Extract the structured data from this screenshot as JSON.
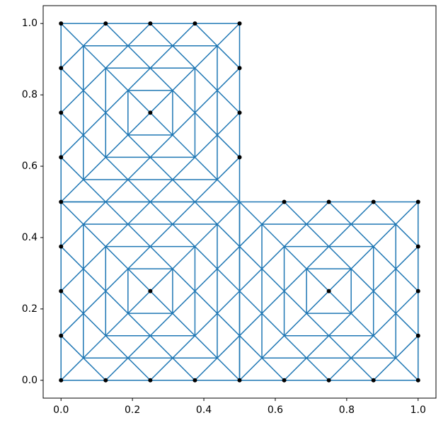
{
  "chart_data": {
    "type": "mesh",
    "xlim": [
      -0.05,
      1.05
    ],
    "ylim": [
      -0.05,
      1.05
    ],
    "xticks": [
      {
        "value": 0,
        "label": "0.0"
      },
      0.2,
      0.4,
      0.6,
      0.8,
      {
        "value": 1,
        "label": "1.0"
      }
    ],
    "yticks": [
      {
        "value": 0,
        "label": "0.0"
      },
      0.2,
      0.4,
      0.6,
      0.8,
      {
        "value": 1,
        "label": "1.0"
      }
    ],
    "grid": false,
    "series": [
      {
        "color": "#1f77b4",
        "x": [
          0,
          0.5,
          0.5,
          0,
          0,
          null,
          0.0625,
          0.4375,
          0.4375,
          0.0625,
          0.0625,
          null,
          0.125,
          0.375,
          0.375,
          0.125,
          0.125,
          null,
          0.1875,
          0.3125,
          0.3125,
          0.1875,
          0.1875,
          null,
          0,
          0.125,
          null,
          0,
          0.25,
          null,
          0,
          0.375,
          null,
          0,
          0.5,
          null,
          0.125,
          0.5,
          null,
          0.25,
          0.5,
          null,
          0.375,
          0.5,
          null,
          0,
          0.125,
          null,
          0,
          0.25,
          null,
          0,
          0.375,
          null,
          0,
          0.5,
          null,
          0.125,
          0.5,
          null,
          0.25,
          0.5,
          null,
          0.375,
          0.5
        ],
        "y": [
          0.5,
          0.5,
          1,
          1,
          0.5,
          null,
          0.5625,
          0.5625,
          0.9375,
          0.9375,
          0.5625,
          null,
          0.625,
          0.625,
          0.875,
          0.875,
          0.625,
          null,
          0.6875,
          0.6875,
          0.8125,
          0.8125,
          0.6875,
          null,
          0.625,
          0.5,
          null,
          0.75,
          0.5,
          null,
          0.875,
          0.5,
          null,
          1,
          0.5,
          null,
          1,
          0.625,
          null,
          1,
          0.75,
          null,
          1,
          0.875,
          null,
          0.875,
          1,
          null,
          0.75,
          1,
          null,
          0.625,
          1,
          null,
          0.5,
          1,
          null,
          0.5,
          0.875,
          null,
          0.5,
          0.75,
          null,
          0.5,
          0.625
        ]
      },
      {
        "color": "#1f77b4",
        "x": [
          0,
          0.5,
          0.5,
          0,
          0,
          null,
          0.0625,
          0.4375,
          0.4375,
          0.0625,
          0.0625,
          null,
          0.125,
          0.375,
          0.375,
          0.125,
          0.125,
          null,
          0.1875,
          0.3125,
          0.3125,
          0.1875,
          0.1875,
          null,
          0,
          0.125,
          null,
          0,
          0.25,
          null,
          0,
          0.375,
          null,
          0,
          0.5,
          null,
          0.125,
          0.5,
          null,
          0.25,
          0.5,
          null,
          0.375,
          0.5,
          null,
          0,
          0.125,
          null,
          0,
          0.25,
          null,
          0,
          0.375,
          null,
          0,
          0.5,
          null,
          0.125,
          0.5,
          null,
          0.25,
          0.5,
          null,
          0.375,
          0.5
        ],
        "y": [
          0,
          0,
          0.5,
          0.5,
          0,
          null,
          0.0625,
          0.0625,
          0.4375,
          0.4375,
          0.0625,
          null,
          0.125,
          0.125,
          0.375,
          0.375,
          0.125,
          null,
          0.1875,
          0.1875,
          0.3125,
          0.3125,
          0.1875,
          null,
          0.125,
          0,
          null,
          0.25,
          0,
          null,
          0.375,
          0,
          null,
          0.5,
          0,
          null,
          0.5,
          0.125,
          null,
          0.5,
          0.25,
          null,
          0.5,
          0.375,
          null,
          0.375,
          0.5,
          null,
          0.25,
          0.5,
          null,
          0.125,
          0.5,
          null,
          0,
          0.5,
          null,
          0,
          0.375,
          null,
          0,
          0.25,
          null,
          0,
          0.125
        ]
      },
      {
        "color": "#1f77b4",
        "x": [
          0.5,
          1,
          1,
          0.5,
          0.5,
          null,
          0.5625,
          0.9375,
          0.9375,
          0.5625,
          0.5625,
          null,
          0.625,
          0.875,
          0.875,
          0.625,
          0.625,
          null,
          0.6875,
          0.8125,
          0.8125,
          0.6875,
          0.6875,
          null,
          0.5,
          0.625,
          null,
          0.5,
          0.75,
          null,
          0.5,
          0.875,
          null,
          0.5,
          1,
          null,
          0.625,
          1,
          null,
          0.75,
          1,
          null,
          0.875,
          1,
          null,
          0.5,
          0.625,
          null,
          0.5,
          0.75,
          null,
          0.5,
          0.875,
          null,
          0.5,
          1,
          null,
          0.625,
          1,
          null,
          0.75,
          1,
          null,
          0.875,
          1
        ],
        "y": [
          0,
          0,
          0.5,
          0.5,
          0,
          null,
          0.0625,
          0.0625,
          0.4375,
          0.4375,
          0.0625,
          null,
          0.125,
          0.125,
          0.375,
          0.375,
          0.125,
          null,
          0.1875,
          0.1875,
          0.3125,
          0.3125,
          0.1875,
          null,
          0.125,
          0,
          null,
          0.25,
          0,
          null,
          0.375,
          0,
          null,
          0.5,
          0,
          null,
          0.5,
          0.125,
          null,
          0.5,
          0.25,
          null,
          0.5,
          0.375,
          null,
          0.375,
          0.5,
          null,
          0.25,
          0.5,
          null,
          0.125,
          0.5,
          null,
          0,
          0.5,
          null,
          0,
          0.375,
          null,
          0,
          0.25,
          null,
          0,
          0.125
        ]
      }
    ],
    "points": {
      "color": "#000000",
      "x": [
        0,
        0.125,
        0.25,
        0.375,
        0.5,
        0.625,
        0.75,
        0.875,
        1,
        1,
        1,
        1,
        1,
        0.875,
        0.75,
        0.625,
        0.5,
        0.5,
        0.5,
        0.5,
        0.375,
        0.25,
        0.125,
        0,
        0,
        0,
        0,
        0,
        0,
        0,
        0,
        0.25,
        0.25,
        0.75
      ],
      "y": [
        0,
        0,
        0,
        0,
        0,
        0,
        0,
        0,
        0,
        0.125,
        0.25,
        0.375,
        0.5,
        0.5,
        0.5,
        0.5,
        0.625,
        0.75,
        0.875,
        1,
        1,
        1,
        1,
        1,
        0.875,
        0.75,
        0.625,
        0.5,
        0.375,
        0.25,
        0.125,
        0.75,
        0.25,
        0.25
      ]
    }
  }
}
